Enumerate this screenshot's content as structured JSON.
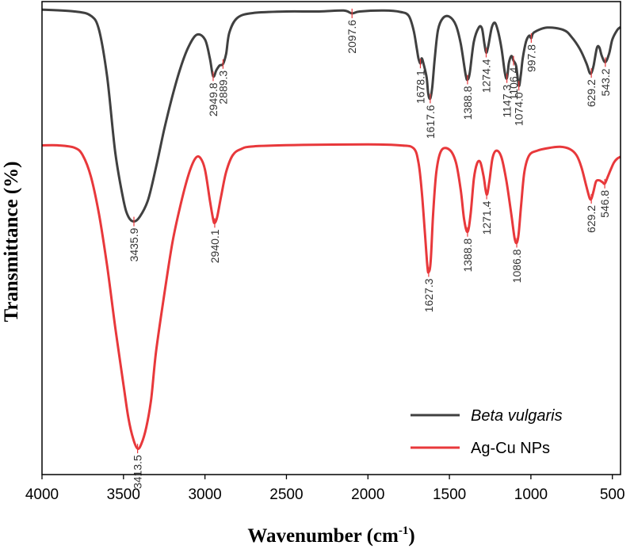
{
  "chart_data": {
    "type": "line",
    "title": "",
    "xlabel": "Wavenumber (cm",
    "xlabel_sup": "-1",
    "xlabel_end": ")",
    "ylabel": "Transmittance (%)",
    "xlim": [
      4000,
      450
    ],
    "ylim": [
      0,
      100
    ],
    "y_ticks_shown": false,
    "grid": false,
    "legend_position": "bottom-right",
    "x_ticks": [
      {
        "value": 4000,
        "label": "4000"
      },
      {
        "value": 3500,
        "label": "3500"
      },
      {
        "value": 3000,
        "label": "3000"
      },
      {
        "value": 2500,
        "label": "2500"
      },
      {
        "value": 2000,
        "label": "2000"
      },
      {
        "value": 1500,
        "label": "1500"
      },
      {
        "value": 1000,
        "label": "1000"
      },
      {
        "value": 500,
        "label": "500"
      }
    ],
    "series": [
      {
        "name": "Beta vulgaris",
        "color": "#404040",
        "baseline": 98.3,
        "points": [
          [
            4000,
            98.3
          ],
          [
            3800,
            97.9
          ],
          [
            3700,
            97
          ],
          [
            3650,
            94
          ],
          [
            3600,
            84
          ],
          [
            3550,
            68
          ],
          [
            3500,
            58
          ],
          [
            3470,
            54.5
          ],
          [
            3435.9,
            53.5
          ],
          [
            3400,
            54.5
          ],
          [
            3350,
            58
          ],
          [
            3300,
            65
          ],
          [
            3250,
            73
          ],
          [
            3200,
            80
          ],
          [
            3150,
            86
          ],
          [
            3100,
            90.5
          ],
          [
            3050,
            93
          ],
          [
            3000,
            92
          ],
          [
            2970,
            88
          ],
          [
            2949.8,
            84.2
          ],
          [
            2930,
            85.5
          ],
          [
            2910,
            86.5
          ],
          [
            2889.3,
            86.8
          ],
          [
            2870,
            89
          ],
          [
            2850,
            93.5
          ],
          [
            2800,
            96.6
          ],
          [
            2700,
            97.6
          ],
          [
            2500,
            97.9
          ],
          [
            2300,
            97.9
          ],
          [
            2150,
            98.1
          ],
          [
            2097.6,
            97.5
          ],
          [
            2050,
            97.9
          ],
          [
            1900,
            98.1
          ],
          [
            1800,
            97.8
          ],
          [
            1750,
            97
          ],
          [
            1720,
            94
          ],
          [
            1700,
            90
          ],
          [
            1690,
            88
          ],
          [
            1678.1,
            86.9
          ],
          [
            1670,
            88
          ],
          [
            1660,
            87
          ],
          [
            1640,
            84
          ],
          [
            1630,
            80.5
          ],
          [
            1617.6,
            79.5
          ],
          [
            1605,
            82
          ],
          [
            1590,
            88
          ],
          [
            1570,
            94
          ],
          [
            1540,
            96.5
          ],
          [
            1500,
            96.8
          ],
          [
            1460,
            95
          ],
          [
            1430,
            91
          ],
          [
            1400,
            84.5
          ],
          [
            1388.8,
            83.5
          ],
          [
            1375,
            85
          ],
          [
            1350,
            91.5
          ],
          [
            1320,
            94.5
          ],
          [
            1300,
            94.3
          ],
          [
            1285,
            91
          ],
          [
            1274.4,
            89.2
          ],
          [
            1262,
            90.5
          ],
          [
            1240,
            94.5
          ],
          [
            1220,
            95.5
          ],
          [
            1200,
            93.5
          ],
          [
            1180,
            90
          ],
          [
            1160,
            85
          ],
          [
            1147.3,
            83.8
          ],
          [
            1135,
            87
          ],
          [
            1120,
            88.5
          ],
          [
            1106.4,
            87.5
          ],
          [
            1090,
            86.3
          ],
          [
            1074,
            82.2
          ],
          [
            1062,
            84.5
          ],
          [
            1050,
            88
          ],
          [
            1030,
            91.5
          ],
          [
            1010,
            92.8
          ],
          [
            997.8,
            92.3
          ],
          [
            980,
            93.5
          ],
          [
            900,
            94.5
          ],
          [
            800,
            94
          ],
          [
            750,
            92.5
          ],
          [
            700,
            90
          ],
          [
            660,
            87
          ],
          [
            640,
            85
          ],
          [
            629.2,
            84.9
          ],
          [
            615,
            86.5
          ],
          [
            595,
            90.2
          ],
          [
            580,
            90.3
          ],
          [
            565,
            88.5
          ],
          [
            543.2,
            87.2
          ],
          [
            520,
            89
          ],
          [
            500,
            92
          ],
          [
            470,
            94
          ],
          [
            450,
            94.6
          ]
        ],
        "peak_labels": [
          {
            "x": 3435.9,
            "label": "3435.9"
          },
          {
            "x": 2949.8,
            "label": "2949.8"
          },
          {
            "x": 2889.3,
            "label": "2889.3"
          },
          {
            "x": 2097.6,
            "label": "2097.6"
          },
          {
            "x": 1678.1,
            "label": "1678.1"
          },
          {
            "x": 1617.6,
            "label": "1617.6"
          },
          {
            "x": 1388.8,
            "label": "1388.8"
          },
          {
            "x": 1274.4,
            "label": "1274.4"
          },
          {
            "x": 1147.3,
            "label": "1147.3"
          },
          {
            "x": 1106.4,
            "label": "1106.4"
          },
          {
            "x": 1074.0,
            "label": "1074.0"
          },
          {
            "x": 997.8,
            "label": "997.8"
          },
          {
            "x": 629.2,
            "label": "629.2"
          },
          {
            "x": 543.2,
            "label": "543.2"
          }
        ]
      },
      {
        "name": "Ag-Cu NPs",
        "color": "#e8383b",
        "baseline": 69.6,
        "points": [
          [
            4000,
            69.6
          ],
          [
            3900,
            69.6
          ],
          [
            3800,
            69.1
          ],
          [
            3750,
            67.5
          ],
          [
            3700,
            63
          ],
          [
            3650,
            55
          ],
          [
            3600,
            44
          ],
          [
            3550,
            31
          ],
          [
            3500,
            19
          ],
          [
            3470,
            12
          ],
          [
            3440,
            7.5
          ],
          [
            3413.5,
            5.5
          ],
          [
            3390,
            6.5
          ],
          [
            3360,
            10
          ],
          [
            3330,
            16
          ],
          [
            3300,
            26
          ],
          [
            3250,
            38
          ],
          [
            3200,
            49
          ],
          [
            3150,
            57
          ],
          [
            3100,
            63.5
          ],
          [
            3060,
            66.8
          ],
          [
            3030,
            67
          ],
          [
            3000,
            64.5
          ],
          [
            2970,
            58
          ],
          [
            2950,
            54
          ],
          [
            2940.1,
            53.2
          ],
          [
            2925,
            54.5
          ],
          [
            2900,
            59
          ],
          [
            2870,
            64
          ],
          [
            2830,
            67.5
          ],
          [
            2780,
            68.8
          ],
          [
            2700,
            69.4
          ],
          [
            2400,
            69.7
          ],
          [
            2000,
            69.8
          ],
          [
            1800,
            69.6
          ],
          [
            1720,
            69
          ],
          [
            1690,
            66
          ],
          [
            1670,
            60
          ],
          [
            1650,
            51
          ],
          [
            1635,
            44
          ],
          [
            1627.3,
            42.8
          ],
          [
            1615,
            45
          ],
          [
            1600,
            55
          ],
          [
            1580,
            64
          ],
          [
            1550,
            68.5
          ],
          [
            1500,
            68.7
          ],
          [
            1460,
            66
          ],
          [
            1430,
            60
          ],
          [
            1410,
            54
          ],
          [
            1388.8,
            51.3
          ],
          [
            1370,
            55
          ],
          [
            1350,
            62.5
          ],
          [
            1330,
            65.8
          ],
          [
            1310,
            66
          ],
          [
            1290,
            63
          ],
          [
            1271.4,
            59.2
          ],
          [
            1255,
            62
          ],
          [
            1235,
            67
          ],
          [
            1210,
            68.5
          ],
          [
            1180,
            67
          ],
          [
            1150,
            62
          ],
          [
            1120,
            55
          ],
          [
            1100,
            50
          ],
          [
            1086.8,
            49
          ],
          [
            1075,
            51
          ],
          [
            1060,
            57
          ],
          [
            1040,
            64
          ],
          [
            1010,
            67.5
          ],
          [
            960,
            68.5
          ],
          [
            900,
            69
          ],
          [
            820,
            69.3
          ],
          [
            760,
            68.8
          ],
          [
            720,
            67.5
          ],
          [
            690,
            65
          ],
          [
            660,
            61
          ],
          [
            640,
            58.5
          ],
          [
            629.2,
            58.3
          ],
          [
            615,
            60
          ],
          [
            600,
            62
          ],
          [
            580,
            62.2
          ],
          [
            560,
            61.8
          ],
          [
            546.8,
            61.5
          ],
          [
            530,
            62.8
          ],
          [
            510,
            64.5
          ],
          [
            490,
            66
          ],
          [
            470,
            66.8
          ],
          [
            450,
            67.2
          ]
        ],
        "peak_labels": [
          {
            "x": 3413.5,
            "label": "3413.5"
          },
          {
            "x": 2940.1,
            "label": "2940.1"
          },
          {
            "x": 1627.3,
            "label": "1627.3"
          },
          {
            "x": 1388.8,
            "label": "1388.8"
          },
          {
            "x": 1271.4,
            "label": "1271.4"
          },
          {
            "x": 1086.8,
            "label": "1086.8"
          },
          {
            "x": 629.2,
            "label": "629.2"
          },
          {
            "x": 546.8,
            "label": "546.8"
          }
        ]
      }
    ]
  }
}
